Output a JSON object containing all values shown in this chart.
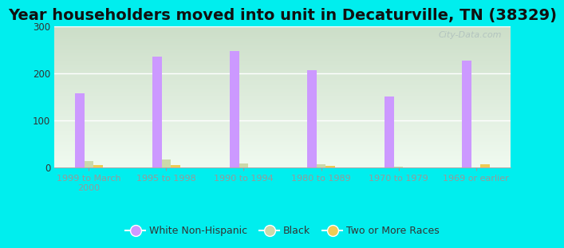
{
  "title": "Year householders moved into unit in Decaturville, TN (38329)",
  "categories": [
    "1999 to March\n2000",
    "1995 to 1998",
    "1990 to 1994",
    "1980 to 1989",
    "1970 to 1979",
    "1969 or earlier"
  ],
  "white_non_hispanic": [
    157,
    235,
    248,
    207,
    150,
    227
  ],
  "black": [
    13,
    16,
    8,
    7,
    2,
    0
  ],
  "two_or_more_races": [
    5,
    5,
    0,
    4,
    0,
    7
  ],
  "bar_colors": {
    "white": "#cc99ff",
    "black": "#ccd9aa",
    "two": "#eecc55"
  },
  "background_color": "#00eeee",
  "grad_top": "#ccdec8",
  "grad_bottom": "#f0faf0",
  "ylim": [
    0,
    300
  ],
  "yticks": [
    0,
    100,
    200,
    300
  ],
  "title_fontsize": 14,
  "legend_labels": [
    "White Non-Hispanic",
    "Black",
    "Two or More Races"
  ],
  "watermark": "City-Data.com"
}
